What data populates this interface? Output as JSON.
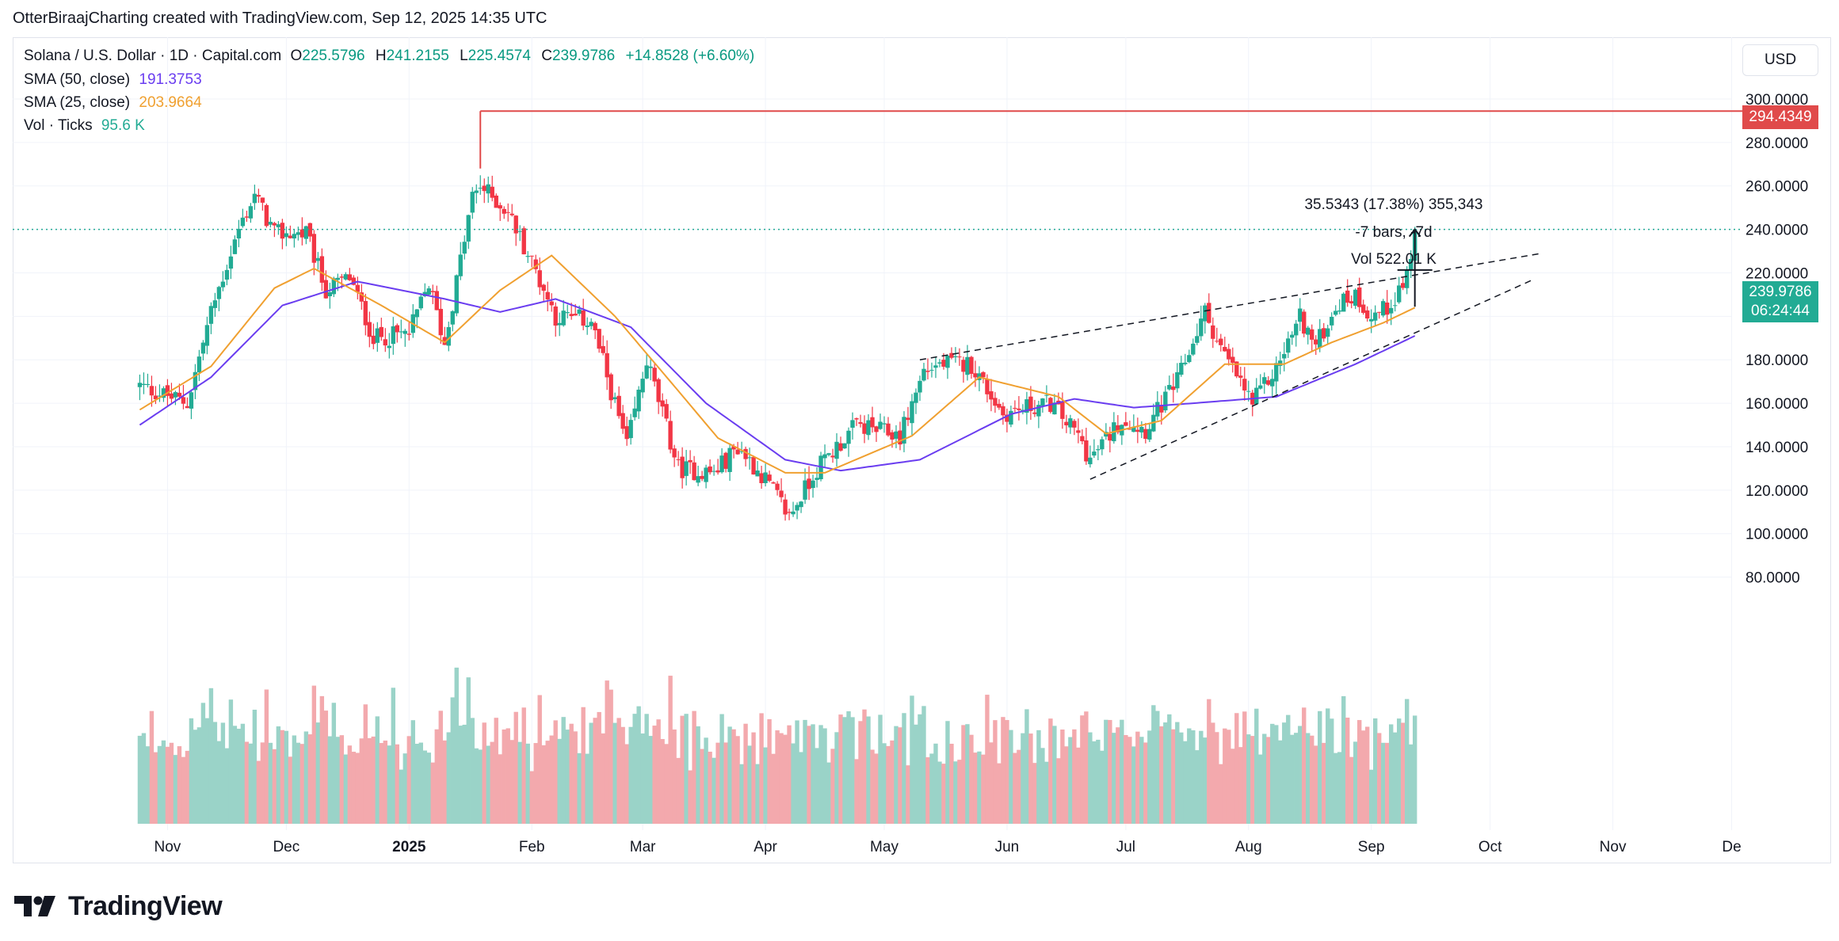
{
  "caption": "OtterBiraajCharting created with TradingView.com, Sep 12, 2025 14:35 UTC",
  "brand": "TradingView",
  "brand_icon": "tradingview-logo-icon",
  "legend": {
    "symbol": "Solana / U.S. Dollar · 1D · Capital.com",
    "o_label": "O",
    "o": "225.5796",
    "h_label": "H",
    "h": "241.2155",
    "l_label": "L",
    "l": "225.4574",
    "c_label": "C",
    "c": "239.9786",
    "change": "+14.8528 (+6.60%)",
    "sma50_label": "SMA (50, close)",
    "sma50_value": "191.3753",
    "sma25_label": "SMA (25, close)",
    "sma25_value": "203.9664",
    "vol_label": "Vol · Ticks",
    "vol_value": "95.6 K"
  },
  "currency": "USD",
  "price_tags": {
    "high": "294.4349",
    "last": "239.9786",
    "countdown": "06:24:44"
  },
  "measure": {
    "line1": "35.5343 (17.38%) 355,343",
    "line2": "-7 bars, -7d",
    "line3": "Vol 522.01 K"
  },
  "colors": {
    "up": "#22ab94",
    "down": "#f23645",
    "sma50": "#6a3df0",
    "sma25": "#f0a030",
    "high_line": "#e04a4a"
  },
  "chart_data": {
    "type": "candlestick",
    "y_axis": {
      "side": "right",
      "ticks": [
        "300.0000",
        "280.0000",
        "260.0000",
        "240.0000",
        "220.0000",
        "200.0000",
        "180.0000",
        "160.0000",
        "140.0000",
        "120.0000",
        "100.0000",
        "80.0000"
      ]
    },
    "x_axis": {
      "ticks": [
        "Nov",
        "Dec",
        "2025",
        "Feb",
        "Mar",
        "Apr",
        "May",
        "Jun",
        "Jul",
        "Aug",
        "Sep",
        "Oct",
        "Nov",
        "De"
      ]
    },
    "anchors": [
      [
        "2024-10-25",
        168
      ],
      [
        "2024-11-06",
        160
      ],
      [
        "2024-11-12",
        202
      ],
      [
        "2024-11-19",
        240
      ],
      [
        "2024-11-23",
        256
      ],
      [
        "2024-11-28",
        238
      ],
      [
        "2024-12-06",
        238
      ],
      [
        "2024-12-11",
        212
      ],
      [
        "2024-12-17",
        218
      ],
      [
        "2024-12-23",
        190
      ],
      [
        "2025-01-01",
        192
      ],
      [
        "2025-01-06",
        215
      ],
      [
        "2025-01-10",
        187
      ],
      [
        "2025-01-17",
        255
      ],
      [
        "2025-01-19",
        260
      ],
      [
        "2025-01-26",
        248
      ],
      [
        "2025-02-01",
        225
      ],
      [
        "2025-02-07",
        200
      ],
      [
        "2025-02-16",
        198
      ],
      [
        "2025-02-25",
        140
      ],
      [
        "2025-03-02",
        180
      ],
      [
        "2025-03-10",
        130
      ],
      [
        "2025-03-19",
        128
      ],
      [
        "2025-03-25",
        140
      ],
      [
        "2025-04-01",
        125
      ],
      [
        "2025-04-07",
        108
      ],
      [
        "2025-04-14",
        130
      ],
      [
        "2025-04-24",
        150
      ],
      [
        "2025-05-05",
        145
      ],
      [
        "2025-05-11",
        175
      ],
      [
        "2025-05-15",
        178
      ],
      [
        "2025-05-23",
        178
      ],
      [
        "2025-05-31",
        155
      ],
      [
        "2025-06-06",
        158
      ],
      [
        "2025-06-12",
        160
      ],
      [
        "2025-06-19",
        145
      ],
      [
        "2025-06-22",
        134
      ],
      [
        "2025-06-30",
        153
      ],
      [
        "2025-07-06",
        148
      ],
      [
        "2025-07-14",
        170
      ],
      [
        "2025-07-21",
        202
      ],
      [
        "2025-07-25",
        185
      ],
      [
        "2025-08-02",
        160
      ],
      [
        "2025-08-08",
        176
      ],
      [
        "2025-08-14",
        200
      ],
      [
        "2025-08-18",
        186
      ],
      [
        "2025-08-23",
        205
      ],
      [
        "2025-08-28",
        210
      ],
      [
        "2025-09-01",
        200
      ],
      [
        "2025-09-05",
        204
      ],
      [
        "2025-09-09",
        215
      ],
      [
        "2025-09-11",
        225
      ],
      [
        "2025-09-12",
        240
      ]
    ],
    "sma50_anchors": [
      [
        "2024-10-25",
        150
      ],
      [
        "2024-11-12",
        172
      ],
      [
        "2024-11-30",
        205
      ],
      [
        "2024-12-19",
        216
      ],
      [
        "2025-01-10",
        208
      ],
      [
        "2025-01-24",
        202
      ],
      [
        "2025-02-07",
        208
      ],
      [
        "2025-02-26",
        195
      ],
      [
        "2025-03-17",
        160
      ],
      [
        "2025-04-06",
        134
      ],
      [
        "2025-04-20",
        129
      ],
      [
        "2025-05-10",
        134
      ],
      [
        "2025-06-02",
        155
      ],
      [
        "2025-06-18",
        162
      ],
      [
        "2025-07-03",
        158
      ],
      [
        "2025-07-18",
        160
      ],
      [
        "2025-08-08",
        163
      ],
      [
        "2025-08-28",
        178
      ],
      [
        "2025-09-12",
        191
      ]
    ],
    "sma25_anchors": [
      [
        "2024-10-25",
        157
      ],
      [
        "2024-11-12",
        177
      ],
      [
        "2024-11-28",
        213
      ],
      [
        "2024-12-08",
        222
      ],
      [
        "2024-12-25",
        205
      ],
      [
        "2025-01-10",
        188
      ],
      [
        "2025-01-24",
        212
      ],
      [
        "2025-02-06",
        228
      ],
      [
        "2025-02-22",
        200
      ],
      [
        "2025-03-08",
        170
      ],
      [
        "2025-03-20",
        144
      ],
      [
        "2025-04-06",
        128
      ],
      [
        "2025-04-16",
        128
      ],
      [
        "2025-05-08",
        145
      ],
      [
        "2025-05-25",
        172
      ],
      [
        "2025-06-14",
        163
      ],
      [
        "2025-06-26",
        146
      ],
      [
        "2025-07-10",
        152
      ],
      [
        "2025-07-26",
        178
      ],
      [
        "2025-08-10",
        178
      ],
      [
        "2025-08-22",
        188
      ],
      [
        "2025-09-04",
        197
      ],
      [
        "2025-09-12",
        204
      ]
    ],
    "volume_ylim": [
      0,
      140000
    ],
    "high_level": 294.4349,
    "last_close": 239.9786,
    "trendlines": [
      {
        "from": [
          "2025-05-10",
          180
        ],
        "to": [
          "2025-10-14",
          229
        ]
      },
      {
        "from": [
          "2025-06-22",
          125
        ],
        "to": [
          "2025-10-12",
          217
        ]
      }
    ],
    "measure_arrow": {
      "from": [
        "2025-09-12",
        204.4
      ],
      "to": [
        "2025-09-12",
        240
      ]
    }
  }
}
